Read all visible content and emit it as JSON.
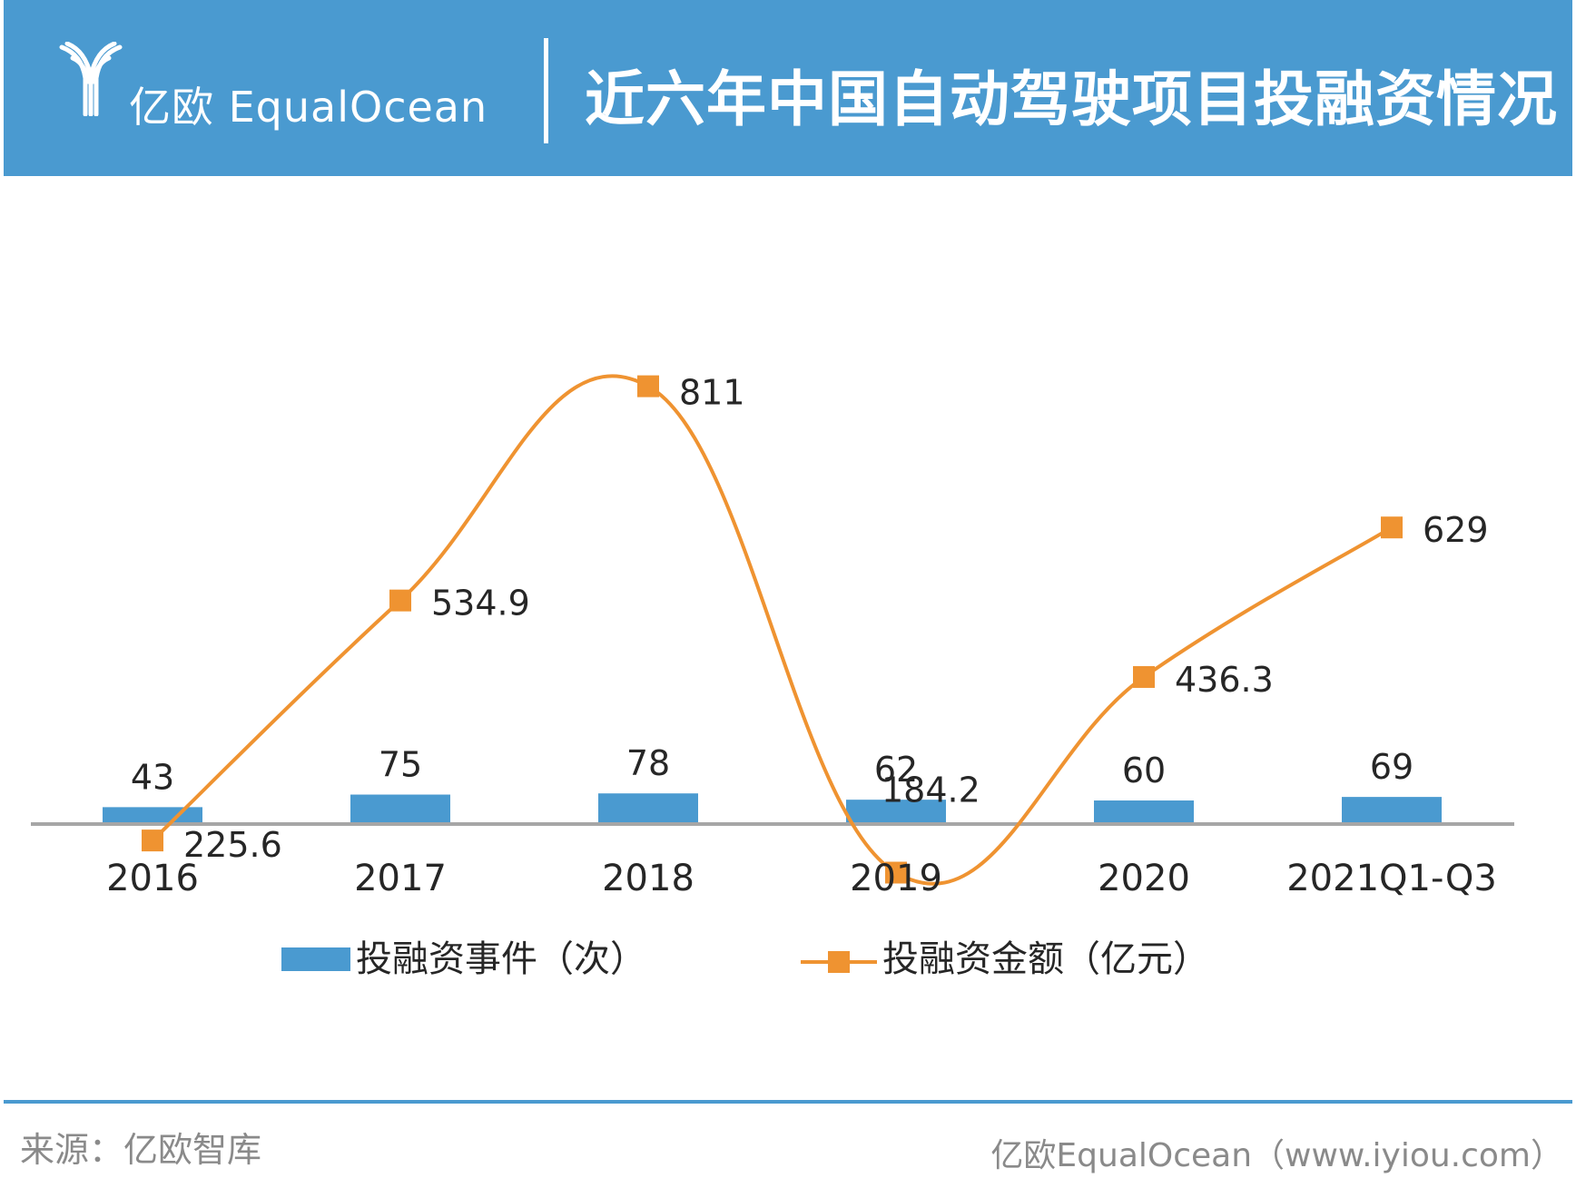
{
  "header": {
    "logo_icon": "equalocean-logo-icon",
    "logo_text": "亿欧 EqualOcean",
    "title": "近六年中国自动驾驶项目投融资情况"
  },
  "colors": {
    "header": "#4a9ad0",
    "bar": "#4a9ad0",
    "line": "#ef9331",
    "axis": "#a6a6a6"
  },
  "chart_data": {
    "type": "bar+line",
    "categories": [
      "2016",
      "2017",
      "2018",
      "2019",
      "2020",
      "2021Q1-Q3"
    ],
    "series": [
      {
        "name": "投融资事件（次）",
        "type": "bar",
        "values": [
          43,
          75,
          78,
          62,
          60,
          69
        ],
        "labels": [
          "43",
          "75",
          "78",
          "62",
          "60",
          "69"
        ]
      },
      {
        "name": "投融资金额（亿元）",
        "type": "line",
        "smooth": true,
        "values": [
          225.6,
          534.9,
          811,
          184.2,
          436.3,
          629
        ],
        "labels": [
          "225.6",
          "534.9",
          "811",
          "184.2",
          "436.3",
          "629"
        ]
      }
    ],
    "legend_position": "bottom",
    "grid": false
  },
  "footer": {
    "source": "来源：亿欧智库",
    "credit": "亿欧EqualOcean（www.iyiou.com）"
  }
}
